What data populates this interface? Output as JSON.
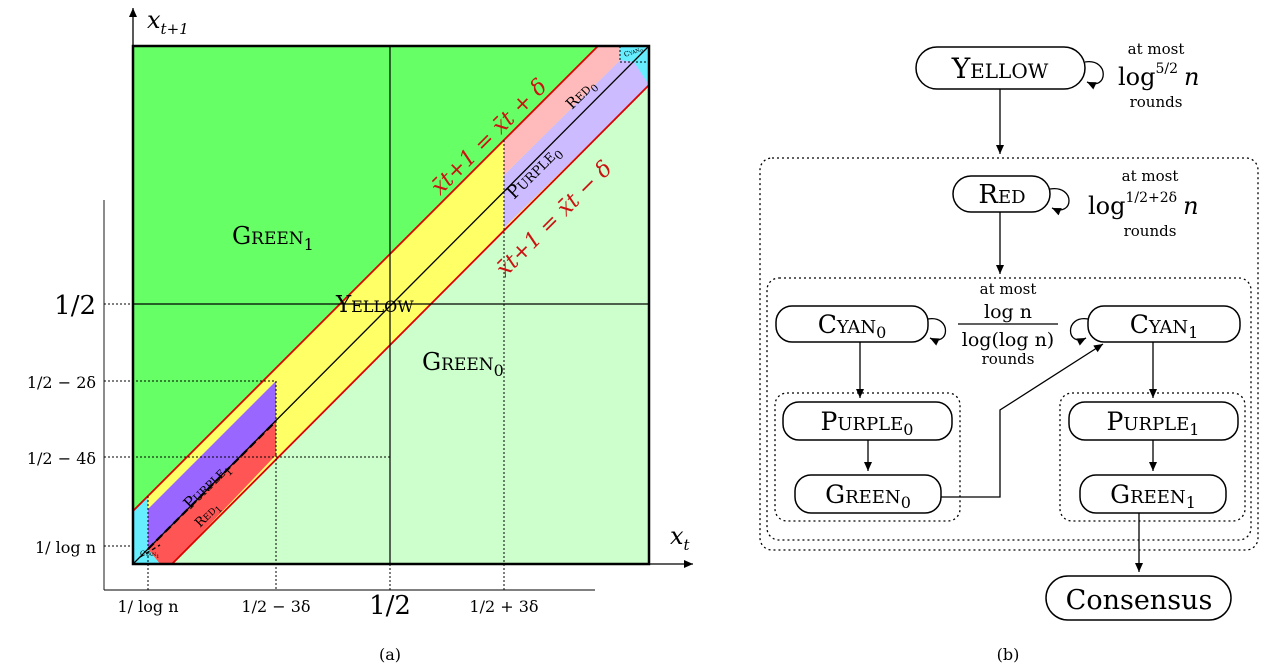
{
  "panel_a": {
    "caption": "(a)",
    "x_axis_label": "x",
    "x_axis_sub": "t",
    "y_axis_label": "x",
    "y_axis_sub": "t+1",
    "x_ticks": [
      "1/ log n",
      "1/2 − 3δ",
      "1/2",
      "1/2 + 3δ"
    ],
    "y_ticks": [
      "1/2",
      "1/2 − 2δ",
      "1/2 − 4δ",
      "1/ log n"
    ],
    "regions": {
      "green1": "Green",
      "green1_sub": "1",
      "green0": "Green",
      "green0_sub": "0",
      "yellow": "Yellow",
      "purple0": "Purple",
      "purple0_sub": "0",
      "purple1": "Purple",
      "purple1_sub": "1",
      "red0": "Red",
      "red0_sub": "0",
      "red1": "Red",
      "red1_sub": "1",
      "cyan0": "Cyan",
      "cyan0_sub": "0",
      "cyan1": "Cyan",
      "cyan1_sub": "1"
    },
    "upper_line_label": "x̄t+1 = x̄t + δ",
    "lower_line_label": "x̄t+1 = x̄t − δ",
    "colors": {
      "green1": "#66ff66",
      "green0": "#ccffcc",
      "yellow": "#ffff66",
      "purple_dark": "#9966ff",
      "purple_light": "#ccbbff",
      "red_dark": "#ff5555",
      "red_light": "#ffbbbb",
      "cyan": "#66eeff",
      "boundary": "#dd0000"
    }
  },
  "panel_b": {
    "caption": "(b)",
    "nodes": {
      "yellow": "Yellow",
      "red": "Red",
      "cyan0": "Cyan",
      "cyan0_sub": "0",
      "cyan1": "Cyan",
      "cyan1_sub": "1",
      "purple0": "Purple",
      "purple0_sub": "0",
      "purple1": "Purple",
      "purple1_sub": "1",
      "green0": "Green",
      "green0_sub": "0",
      "green1": "Green",
      "green1_sub": "1",
      "consensus": "Consensus"
    },
    "annotations": {
      "yellow_top": "at most",
      "yellow_log": "log",
      "yellow_exp": "5/2",
      "yellow_n": "n",
      "yellow_bottom": "rounds",
      "red_top": "at most",
      "red_log": "log",
      "red_exp": "1/2+2δ",
      "red_n": "n",
      "red_bottom": "rounds",
      "cyan_top": "at most",
      "cyan_num": "log n",
      "cyan_den": "log(log n)",
      "cyan_bottom": "rounds"
    }
  }
}
